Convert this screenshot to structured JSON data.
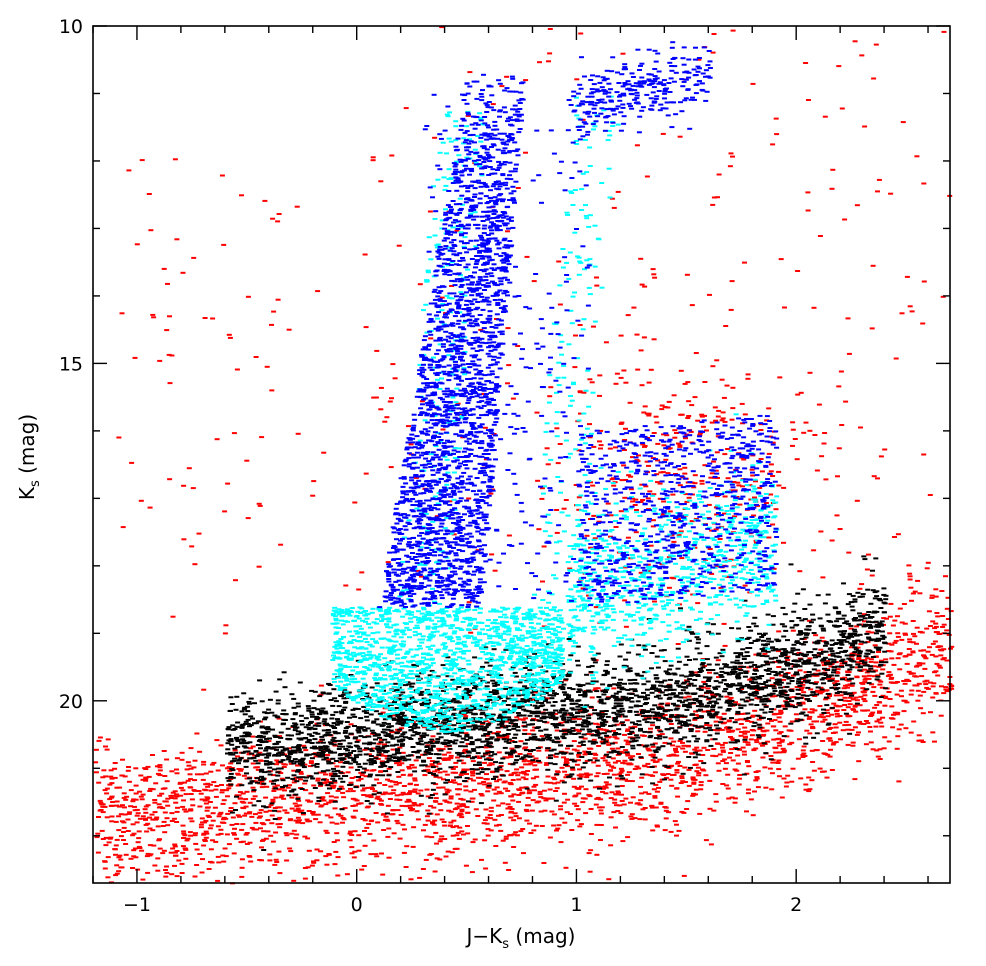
{
  "chart_data": {
    "type": "scatter",
    "title": "",
    "xlabel": "J−K",
    "xlabel_sub": "s",
    "xlabel_unit": " (mag)",
    "ylabel": "K",
    "ylabel_sub": "s",
    "ylabel_unit": " (mag)",
    "xlim": [
      -1.2,
      2.7
    ],
    "ylim": [
      22.7,
      10.0
    ],
    "y_inverted": true,
    "x_ticks": [
      -1,
      0,
      1,
      2
    ],
    "x_tick_labels": [
      "−1",
      "0",
      "1",
      "2"
    ],
    "y_ticks": [
      10,
      15,
      20
    ],
    "y_tick_labels": [
      "10",
      "15",
      "20"
    ],
    "grid": false,
    "legend": "none",
    "series": [
      {
        "color": "#ff0000",
        "regions": [
          {
            "x_start": -1.2,
            "x_end": 2.7,
            "y_start": 22.6,
            "y_end": 19.8,
            "density": "high"
          },
          {
            "x_start": -1.0,
            "x_end": 2.7,
            "y_start": 19.8,
            "y_end": 10.0,
            "density": "sparse"
          },
          {
            "x_center": 1.5,
            "y_center": 16.8,
            "density": "medium"
          }
        ]
      },
      {
        "color": "#000000",
        "regions": [
          {
            "x_start": -0.6,
            "x_end": 2.4,
            "y_start": 21.3,
            "y_end": 17.5,
            "density": "high"
          }
        ]
      },
      {
        "color": "#00ffff",
        "regions": [
          {
            "x_start": -0.1,
            "x_end": 1.9,
            "y_start": 20.5,
            "y_end": 17.5,
            "density": "high"
          },
          {
            "x_start": 0.3,
            "x_end": 1.1,
            "y_start": 18.6,
            "y_end": 11.0,
            "density": "edge"
          }
        ]
      },
      {
        "color": "#0000ff",
        "regions": [
          {
            "x_start": 0.3,
            "x_end": 1.0,
            "y_start": 18.6,
            "y_end": 10.5,
            "density": "high"
          },
          {
            "x_start": 0.9,
            "x_end": 1.9,
            "y_start": 18.6,
            "y_end": 15.5,
            "density": "medium"
          },
          {
            "x_start": 1.0,
            "x_end": 1.6,
            "y_start": 11.0,
            "y_end": 10.5,
            "density": "sparse"
          }
        ]
      }
    ]
  }
}
